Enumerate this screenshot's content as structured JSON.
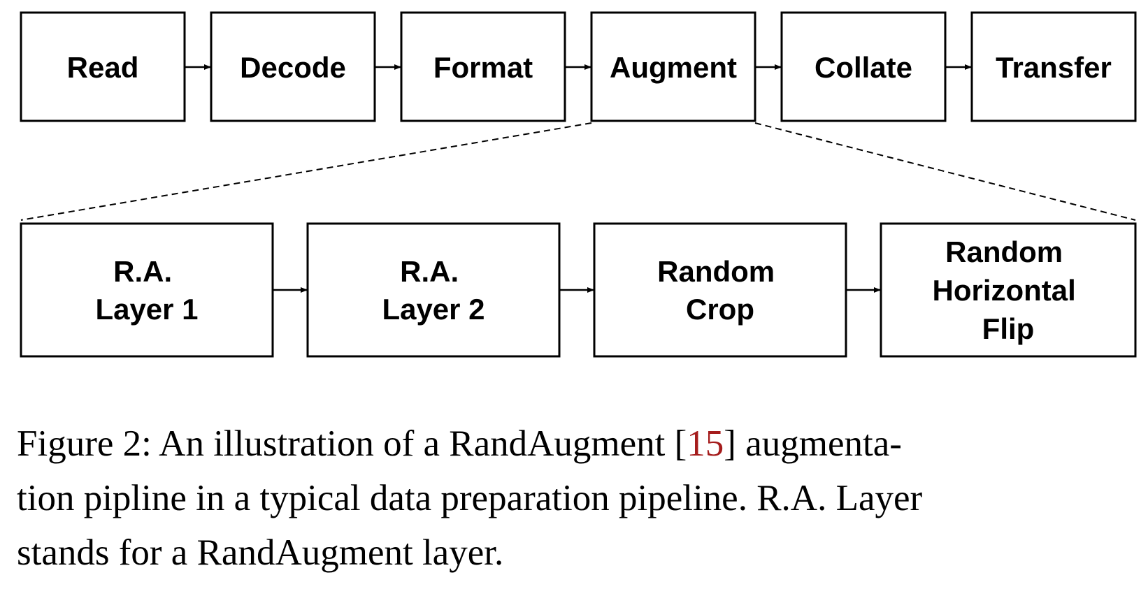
{
  "pipeline": {
    "stages": [
      "Read",
      "Decode",
      "Format",
      "Augment",
      "Collate",
      "Transfer"
    ],
    "augment_layers": [
      [
        "R.A.",
        "Layer 1"
      ],
      [
        "R.A.",
        "Layer 2"
      ],
      [
        "Random",
        "Crop"
      ],
      [
        "Random",
        "Horizontal",
        "Flip"
      ]
    ]
  },
  "caption": {
    "line1_prefix": "Figure 2: An illustration of a RandAugment [",
    "citation": "15",
    "line1_suffix": "] augmenta-",
    "line2": "tion pipline in a typical data preparation pipeline. R.A. Layer",
    "line3": "stands for a RandAugment layer."
  },
  "colors": {
    "stroke": "#000000",
    "citation": "#a51c1c"
  }
}
